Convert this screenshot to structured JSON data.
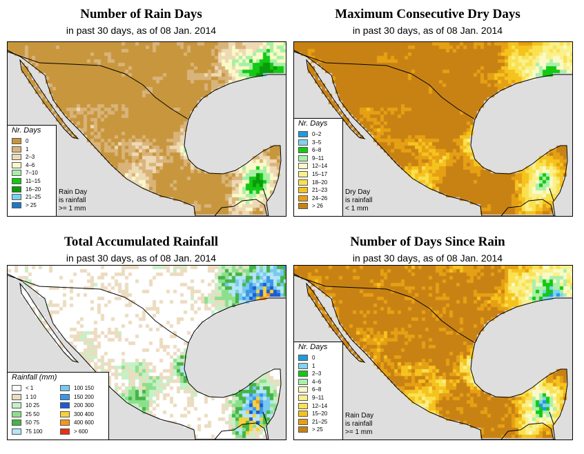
{
  "colors": {
    "ocean": "#dedede",
    "border": "#000000"
  },
  "panels": [
    {
      "title": "Number of Rain Days",
      "subtitle": "in past 30 days, as of  08 Jan. 2014",
      "scheme": "raindays",
      "legend": {
        "title": "Nr. Days",
        "items": [
          {
            "label": "0",
            "color": "#c8963c"
          },
          {
            "label": "1",
            "color": "#d9b47a"
          },
          {
            "label": "2–3",
            "color": "#eed9b5"
          },
          {
            "label": "4–6",
            "color": "#fafac8"
          },
          {
            "label": "7–10",
            "color": "#a6f0a6"
          },
          {
            "label": "11–15",
            "color": "#14c814"
          },
          {
            "label": "16–20",
            "color": "#0a9a0a"
          },
          {
            "label": "21–25",
            "color": "#78d2f0"
          },
          {
            "label": "> 25",
            "color": "#1e78c8"
          }
        ],
        "note": [
          "Rain Day",
          "is rainfall",
          ">= 1 mm"
        ]
      }
    },
    {
      "title": "Maximum Consecutive Dry Days",
      "subtitle": "in past 30 days, as of  08 Jan. 2014",
      "scheme": "drydays",
      "legend": {
        "title": "Nr. Days",
        "items": [
          {
            "label": "0–2",
            "color": "#1e9bdc"
          },
          {
            "label": "3–5",
            "color": "#82d2f0"
          },
          {
            "label": "6–8",
            "color": "#14c814"
          },
          {
            "label": "9–11",
            "color": "#aaf0aa"
          },
          {
            "label": "12–14",
            "color": "#fafac8"
          },
          {
            "label": "15–17",
            "color": "#faf08c"
          },
          {
            "label": "18–20",
            "color": "#fae150"
          },
          {
            "label": "21–23",
            "color": "#f5c31e"
          },
          {
            "label": "24–26",
            "color": "#e6a014"
          },
          {
            "label": "> 26",
            "color": "#c88214"
          }
        ],
        "note": [
          "Dry Day",
          "is rainfall",
          "< 1 mm"
        ]
      }
    },
    {
      "title": "Total Accumulated Rainfall",
      "subtitle": "in past 30 days, as of  08 Jan. 2014",
      "scheme": "rainfall",
      "legend": {
        "title": "Rainfall (mm)",
        "items": [
          {
            "label": "< 1",
            "color": "#ffffff"
          },
          {
            "label": "1   10",
            "color": "#ecdcc0"
          },
          {
            "label": "10   25",
            "color": "#c6f0c6"
          },
          {
            "label": "25   50",
            "color": "#8ce08c"
          },
          {
            "label": "50   75",
            "color": "#46b446"
          },
          {
            "label": "75  100",
            "color": "#b4e6f5"
          },
          {
            "label": "100  150",
            "color": "#78c8f0"
          },
          {
            "label": "150  200",
            "color": "#3c96e6"
          },
          {
            "label": "200  300",
            "color": "#1e5ad2"
          },
          {
            "label": "300  400",
            "color": "#f5d23c"
          },
          {
            "label": "400  600",
            "color": "#f5961e"
          },
          {
            "label": "> 600",
            "color": "#e63214"
          }
        ],
        "note": []
      }
    },
    {
      "title": "Number of Days Since Rain",
      "subtitle": "in past 30 days, as of  08 Jan. 2014",
      "scheme": "sincerain",
      "legend": {
        "title": "Nr. Days",
        "items": [
          {
            "label": "0",
            "color": "#1e9bdc"
          },
          {
            "label": "1",
            "color": "#82d2f0"
          },
          {
            "label": "2–3",
            "color": "#14c814"
          },
          {
            "label": "4–6",
            "color": "#aaf0aa"
          },
          {
            "label": "6–8",
            "color": "#fafac8"
          },
          {
            "label": "9–11",
            "color": "#faf08c"
          },
          {
            "label": "12–14",
            "color": "#fae150"
          },
          {
            "label": "15–20",
            "color": "#f5c31e"
          },
          {
            "label": "21–25",
            "color": "#e6a014"
          },
          {
            "label": "> 25",
            "color": "#c88214"
          }
        ],
        "note": [
          "Rain Day",
          "is rainfall",
          ">= 1 mm"
        ]
      }
    }
  ]
}
